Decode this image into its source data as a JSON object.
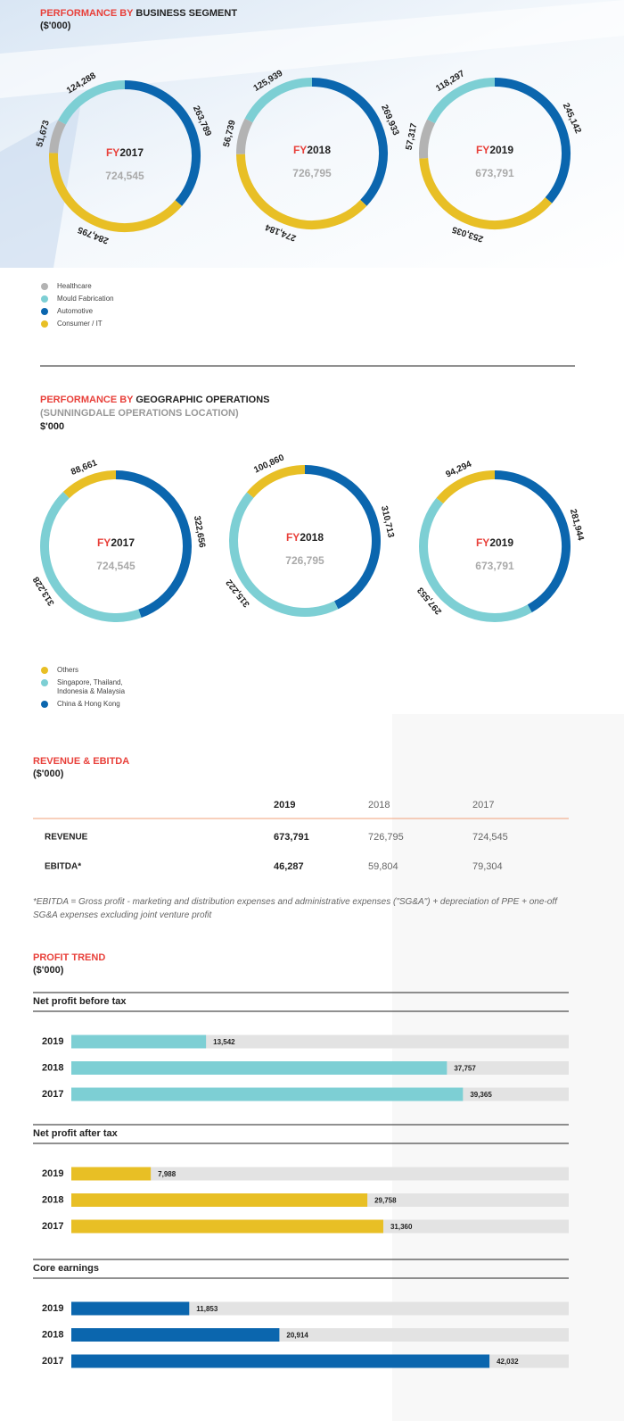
{
  "chart_data": [
    {
      "type": "donut",
      "title_lead": "PERFORMANCE BY",
      "title": "BUSINESS SEGMENT",
      "unit": "($'000)",
      "category_prefix": "FY",
      "categories": [
        "2017",
        "2018",
        "2019"
      ],
      "totals": [
        "724,545",
        "726,795",
        "673,791"
      ],
      "series": [
        {
          "name": "Healthcare",
          "color": "#b3b3b3",
          "values": [
            51673,
            56739,
            57317
          ],
          "value_labels": [
            "51,673",
            "56,739",
            "57,317"
          ]
        },
        {
          "name": "Mould Fabrication",
          "color": "#7dcfd4",
          "values": [
            124288,
            125939,
            118297
          ],
          "value_labels": [
            "124,288",
            "125,939",
            "118,297"
          ]
        },
        {
          "name": "Automotive",
          "color": "#0b66ae",
          "values": [
            263789,
            269933,
            245142
          ],
          "value_labels": [
            "263,789",
            "269,933",
            "245,142"
          ]
        },
        {
          "name": "Consumer / IT",
          "color": "#e8bf25",
          "values": [
            284795,
            274184,
            253035
          ],
          "value_labels": [
            "284,795",
            "274,184",
            "253,035"
          ]
        }
      ]
    },
    {
      "type": "donut",
      "title_lead": "PERFORMANCE BY",
      "title": "GEOGRAPHIC OPERATIONS",
      "subtitle": "(SUNNINGDALE OPERATIONS LOCATION)",
      "unit": "$'000",
      "category_prefix": "FY",
      "categories": [
        "2017",
        "2018",
        "2019"
      ],
      "totals": [
        "724,545",
        "726,795",
        "673,791"
      ],
      "series": [
        {
          "name": "Others",
          "color": "#e8bf25",
          "values": [
            88661,
            100860,
            94294
          ],
          "value_labels": [
            "88,661",
            "100,860",
            "94,294"
          ]
        },
        {
          "name": "Singapore, Thailand, Indonesia & Malaysia",
          "color": "#7dcfd4",
          "values": [
            313228,
            315222,
            297553
          ],
          "value_labels": [
            "313,228",
            "315,222",
            "297,553"
          ]
        },
        {
          "name": "China & Hong Kong",
          "color": "#0b66ae",
          "values": [
            322656,
            310713,
            281944
          ],
          "value_labels": [
            "322,656",
            "310,713",
            "281,944"
          ]
        }
      ]
    },
    {
      "type": "hbar",
      "title": "Net profit before tax",
      "categories": [
        "2019",
        "2018",
        "2017"
      ],
      "values": [
        13542,
        37757,
        39365
      ],
      "value_labels": [
        "13,542",
        "37,757",
        "39,365"
      ],
      "color": "#7dcfd4",
      "xlim": [
        0,
        50000
      ]
    },
    {
      "type": "hbar",
      "title": "Net profit after tax",
      "categories": [
        "2019",
        "2018",
        "2017"
      ],
      "values": [
        7988,
        29758,
        31360
      ],
      "value_labels": [
        "7,988",
        "29,758",
        "31,360"
      ],
      "color": "#e8bf25",
      "xlim": [
        0,
        50000
      ]
    },
    {
      "type": "hbar",
      "title": "Core earnings",
      "categories": [
        "2019",
        "2018",
        "2017"
      ],
      "values": [
        11853,
        20914,
        42032
      ],
      "value_labels": [
        "11,853",
        "20,914",
        "42,032"
      ],
      "color": "#0b66ae",
      "xlim": [
        0,
        50000
      ]
    }
  ],
  "revenue": {
    "title": "REVENUE & EBITDA",
    "unit": "($'000)",
    "header": [
      "2019",
      "2018",
      "2017"
    ],
    "rows": [
      [
        "REVENUE",
        "673,791",
        "726,795",
        "724,545"
      ],
      [
        "EBITDA*",
        "46,287",
        "59,804",
        "79,304"
      ]
    ],
    "footnote": "*EBITDA = Gross profit - marketing and distribution expenses and administrative expenses (\"SG&A\") + depreciation of PPE + one-off SG&A expenses excluding joint venture profit"
  },
  "profit_trend": {
    "title": "PROFIT TREND",
    "unit": "($'000)"
  }
}
